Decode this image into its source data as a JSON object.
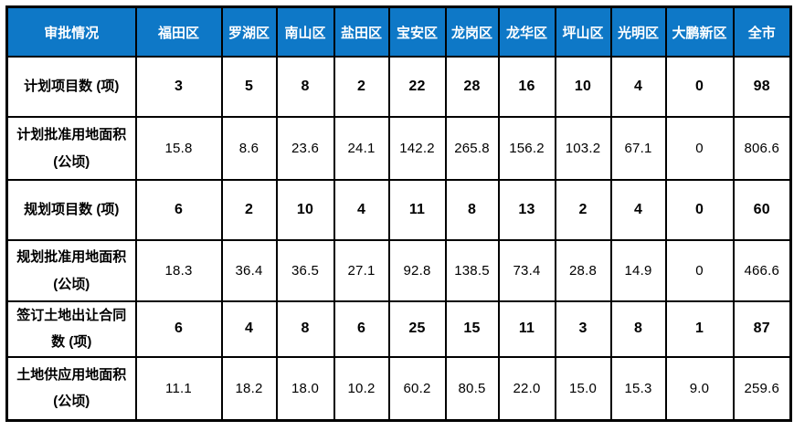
{
  "table": {
    "corner_header": "审批情况",
    "header": [
      "审批情况",
      "福田区",
      "罗湖区",
      "南山区",
      "盐田区",
      "宝安区",
      "龙岗区",
      "龙华区",
      "坪山区",
      "光明区",
      "大鹏新区",
      "全市"
    ],
    "rows": [
      {
        "label1": "计划项目数 (项)",
        "label2": "",
        "bold": true,
        "values": [
          "3",
          "5",
          "8",
          "2",
          "22",
          "28",
          "16",
          "10",
          "4",
          "0",
          "98"
        ]
      },
      {
        "label1": "计划批准用地面积",
        "label2": "(公顷)",
        "bold": false,
        "values": [
          "15.8",
          "8.6",
          "23.6",
          "24.1",
          "142.2",
          "265.8",
          "156.2",
          "103.2",
          "67.1",
          "0",
          "806.6"
        ]
      },
      {
        "label1": "规划项目数 (项)",
        "label2": "",
        "bold": true,
        "values": [
          "6",
          "2",
          "10",
          "4",
          "11",
          "8",
          "13",
          "2",
          "4",
          "0",
          "60"
        ]
      },
      {
        "label1": "规划批准用地面积",
        "label2": "(公顷)",
        "bold": false,
        "values": [
          "18.3",
          "36.4",
          "36.5",
          "27.1",
          "92.8",
          "138.5",
          "73.4",
          "28.8",
          "14.9",
          "0",
          "466.6"
        ]
      },
      {
        "label1": "签订土地出让合同",
        "label2": "数 (项)",
        "bold": true,
        "values": [
          "6",
          "4",
          "8",
          "6",
          "25",
          "15",
          "11",
          "3",
          "8",
          "1",
          "87"
        ]
      },
      {
        "label1": "土地供应用地面积",
        "label2": "(公顷)",
        "bold": false,
        "values": [
          "11.1",
          "18.2",
          "18.0",
          "10.2",
          "60.2",
          "80.5",
          "22.0",
          "15.0",
          "15.3",
          "9.0",
          "259.6"
        ]
      }
    ],
    "colors": {
      "header_bg": "#0e78c7",
      "header_text": "#ffffff",
      "border": "#000000",
      "cell_bg": "#ffffff",
      "text": "#000000"
    }
  }
}
